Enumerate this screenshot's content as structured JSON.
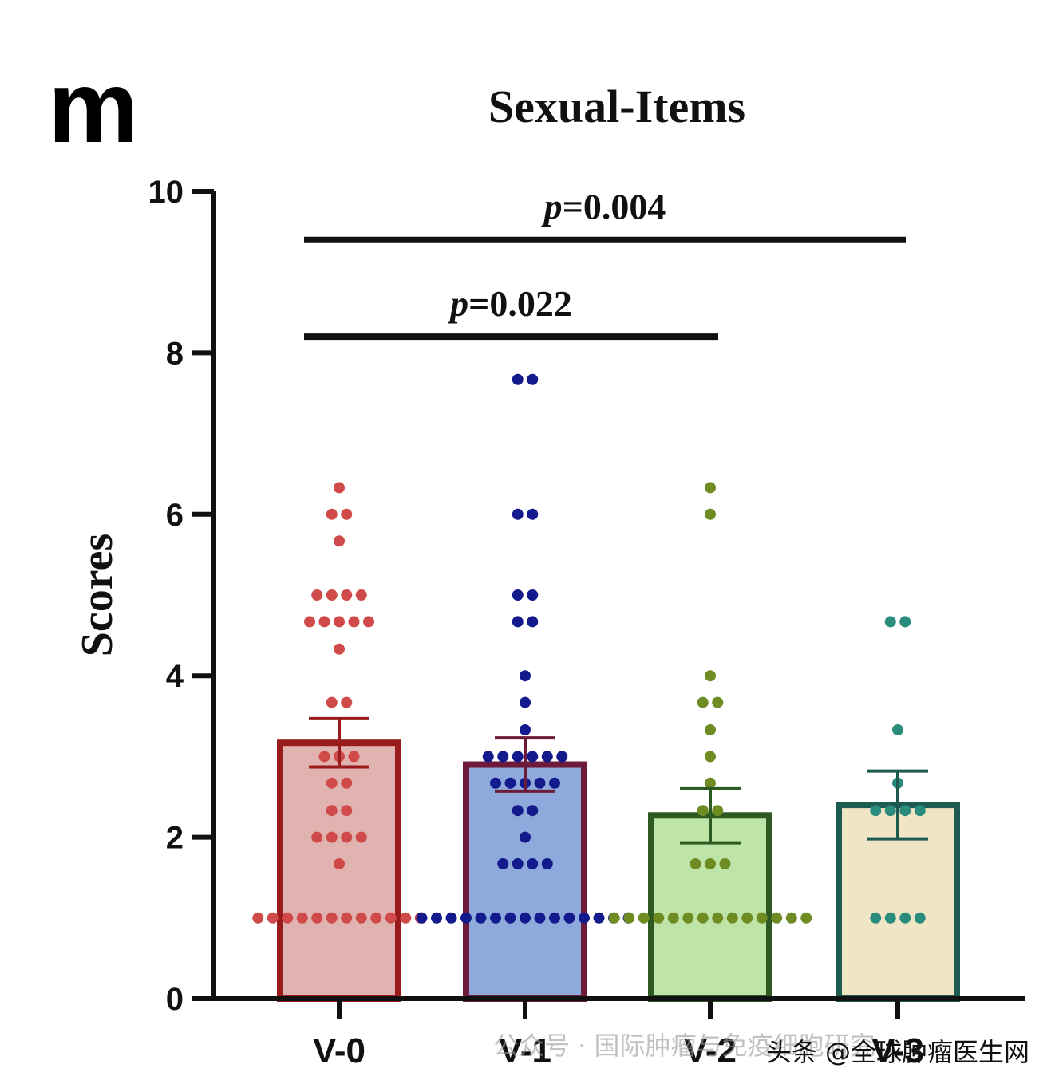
{
  "panel_letter": "m",
  "watermark": {
    "faint_text": "公众号 · 国际肿瘤与免疫细胞研究",
    "main_text": "头条 @全球肿瘤医生网"
  },
  "chart_data": {
    "type": "bar",
    "title": "Sexual-Items",
    "xlabel": "",
    "ylabel": "Scores",
    "ylim": [
      0,
      10
    ],
    "yticks": [
      0,
      2,
      4,
      6,
      8,
      10
    ],
    "grid": false,
    "categories": [
      "V-0",
      "V-1",
      "V-2",
      "V-3"
    ],
    "values": [
      3.17,
      2.9,
      2.27,
      2.4
    ],
    "error_upper": [
      3.47,
      3.23,
      2.6,
      2.82
    ],
    "error_lower": [
      2.87,
      2.57,
      1.93,
      1.98
    ],
    "bar_fill_colors": [
      "#e0b3b0",
      "#8ea9db",
      "#bfe4a8",
      "#f0e6c6"
    ],
    "bar_edge_colors": [
      "#9a1b1b",
      "#6e1a3a",
      "#2c5a22",
      "#1d5a4f"
    ],
    "point_colors": [
      "#cf4a48",
      "#121a8c",
      "#6e8c22",
      "#2a8c7c"
    ],
    "points": [
      [
        1,
        1,
        1,
        1,
        1,
        1,
        1,
        1,
        1,
        1,
        1,
        1,
        1.67,
        2,
        2,
        2,
        2,
        2.33,
        2.33,
        2.67,
        2.67,
        3,
        3,
        3,
        3.67,
        3.67,
        4.33,
        4.67,
        4.67,
        4.67,
        4.67,
        4.67,
        5,
        5,
        5,
        5,
        5.67,
        6,
        6,
        6.33
      ],
      [
        1,
        1,
        1,
        1,
        1,
        1,
        1,
        1,
        1,
        1,
        1,
        1,
        1,
        1,
        1,
        1.67,
        1.67,
        1.67,
        1.67,
        2,
        2.33,
        2.33,
        2.67,
        2.67,
        2.67,
        2.67,
        2.67,
        3,
        3,
        3,
        3,
        3,
        3,
        3.33,
        3.67,
        4,
        4.67,
        4.67,
        5,
        5,
        6,
        6,
        7.67,
        7.67
      ],
      [
        1,
        1,
        1,
        1,
        1,
        1,
        1,
        1,
        1,
        1,
        1,
        1,
        1,
        1,
        1.67,
        1.67,
        1.67,
        2.33,
        2.33,
        2.67,
        3,
        3.33,
        3.67,
        3.67,
        4,
        6,
        6.33
      ],
      [
        1,
        1,
        1,
        1,
        2.33,
        2.33,
        2.33,
        2.33,
        2.67,
        3.33,
        4.67,
        4.67
      ]
    ],
    "significance": [
      {
        "label_p": "p",
        "label_rest": "=0.022",
        "from": "V-0",
        "to": "V-2",
        "y": 8.2
      },
      {
        "label_p": "p",
        "label_rest": "=0.004",
        "from": "V-0",
        "to": "V-3",
        "y": 9.4
      }
    ]
  }
}
